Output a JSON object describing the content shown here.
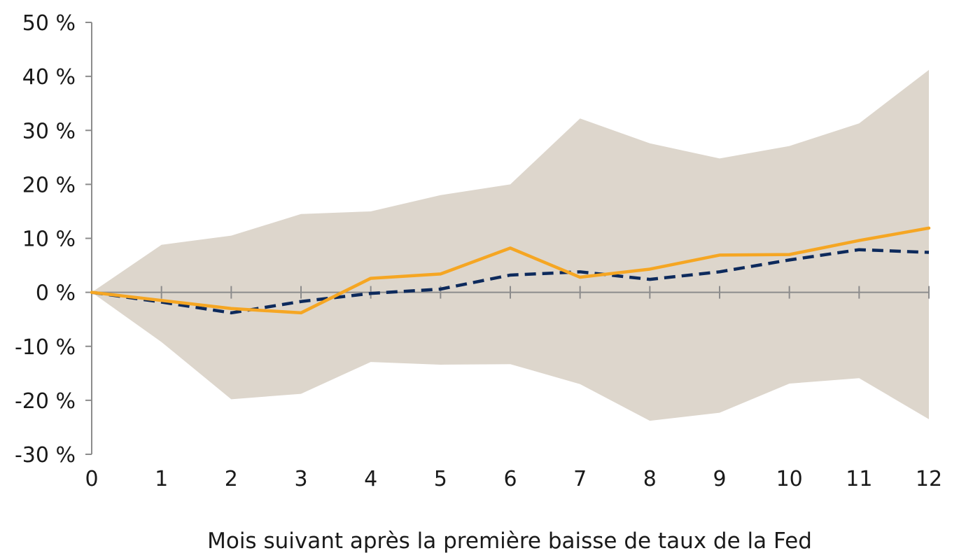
{
  "chart_data": {
    "type": "area",
    "title": "",
    "xlabel": "Mois suivant après la première baisse de taux de la Fed",
    "ylabel": "",
    "x": [
      0,
      1,
      2,
      3,
      4,
      5,
      6,
      7,
      8,
      9,
      10,
      11,
      12
    ],
    "xlim": [
      0,
      12
    ],
    "ylim": [
      -30,
      50
    ],
    "y_ticks": [
      -30,
      -20,
      -10,
      0,
      10,
      20,
      30,
      40,
      50
    ],
    "y_tick_labels": [
      "-30 %",
      "-20 %",
      "-10 %",
      "0 %",
      "10 %",
      "20 %",
      "30 %",
      "40 %",
      "50 %"
    ],
    "x_tick_labels": [
      "0",
      "1",
      "2",
      "3",
      "4",
      "5",
      "6",
      "7",
      "8",
      "9",
      "10",
      "11",
      "12"
    ],
    "grid": false,
    "legend": "none",
    "band": {
      "upper": [
        0,
        8.8,
        10.5,
        14.5,
        15.0,
        18.0,
        20.0,
        32.2,
        27.6,
        24.8,
        27.1,
        31.3,
        41.2
      ],
      "lower": [
        0,
        -9.2,
        -19.8,
        -18.8,
        -12.9,
        -13.4,
        -13.3,
        -17.0,
        -23.8,
        -22.3,
        -16.9,
        -15.9,
        -23.5
      ],
      "color": "#ddd6cc"
    },
    "series": [
      {
        "style": "dashed",
        "color": "#0d2a5c",
        "values": [
          0,
          -1.8,
          -3.8,
          -1.7,
          -0.2,
          0.6,
          3.2,
          3.8,
          2.4,
          3.8,
          6.0,
          7.9,
          7.4
        ]
      },
      {
        "style": "solid",
        "color": "#f5a623",
        "values": [
          0,
          -1.5,
          -3.0,
          -3.8,
          2.6,
          3.4,
          8.2,
          2.8,
          4.3,
          6.9,
          7.0,
          9.6,
          11.9
        ]
      }
    ],
    "axis_color": "#8c8c8c"
  }
}
